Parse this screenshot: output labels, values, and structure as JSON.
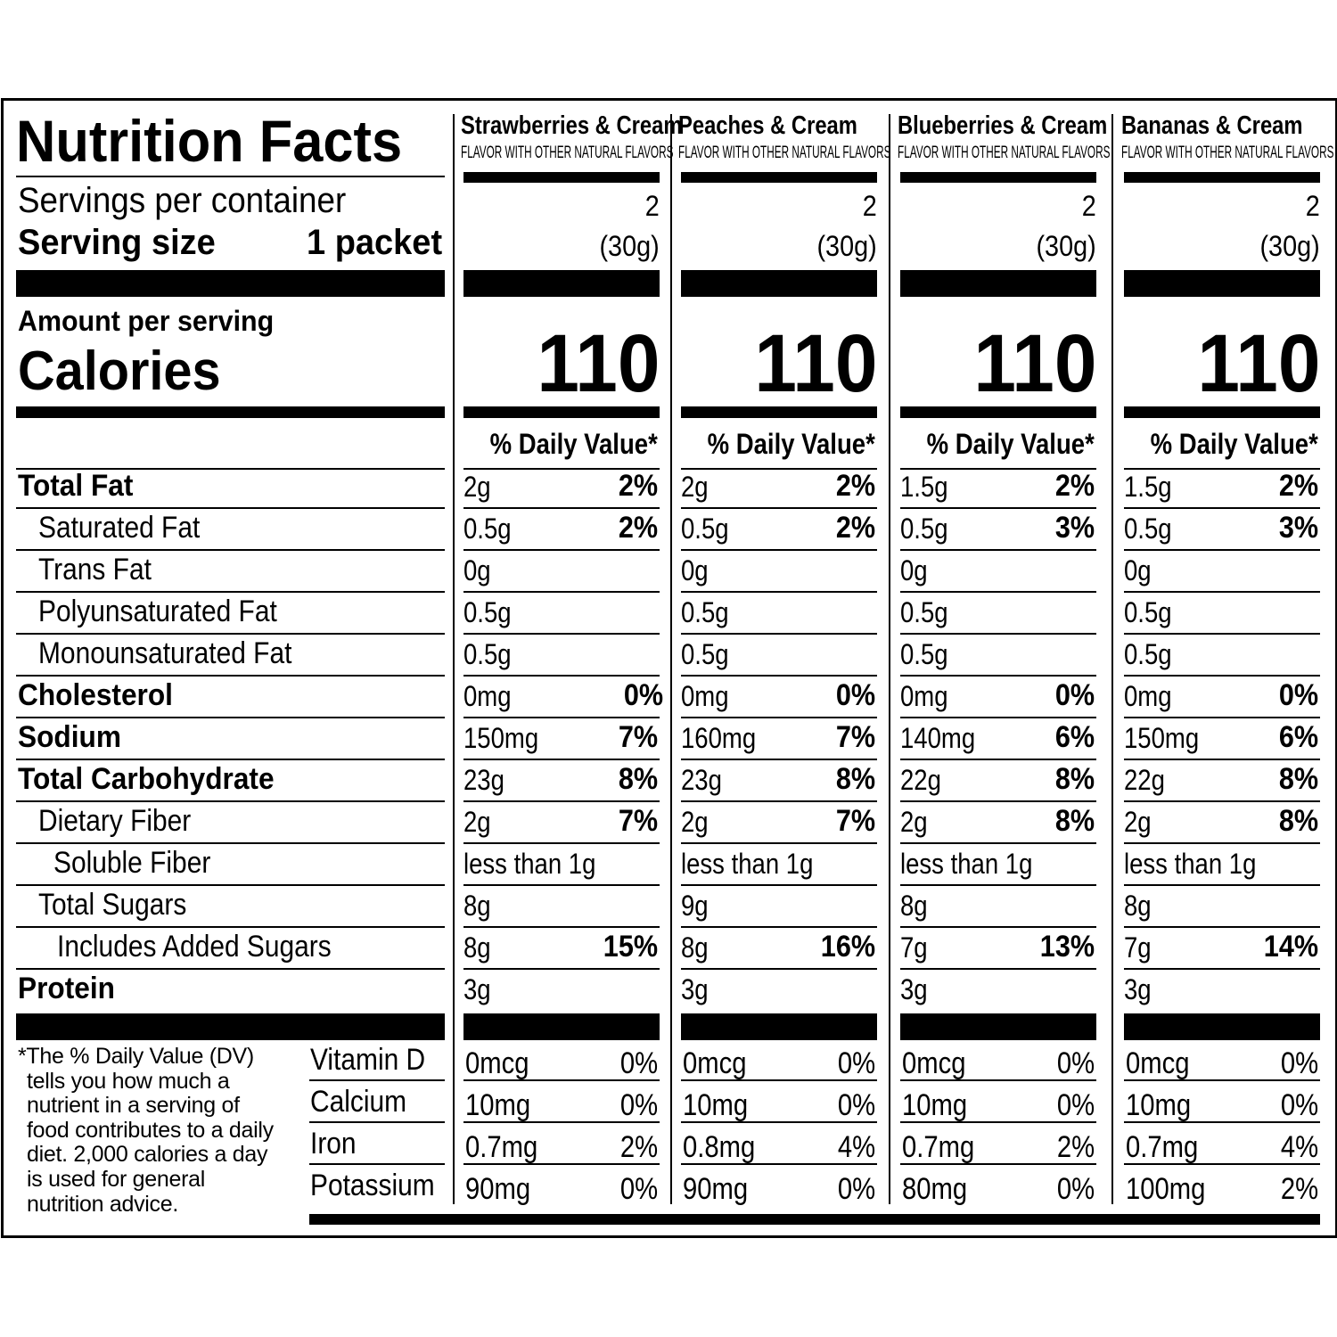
{
  "label": {
    "title": "Nutrition Facts",
    "servings_label": "Servings per container",
    "serving_size_label": "Serving size",
    "serving_size_value": "1 packet",
    "amount_per_serving": "Amount per serving",
    "calories_label": "Calories",
    "footnote": "*The % Daily Value (DV) tells you how much a nutrient in a serving of food contributes to a daily diet. 2,000 calories a day is used for general nutrition advice.",
    "rows": [
      {
        "label": "Total Fat",
        "bold": true,
        "indent": 0
      },
      {
        "label": "Saturated Fat",
        "bold": false,
        "indent": 1
      },
      {
        "label": "Trans Fat",
        "bold": false,
        "indent": 1
      },
      {
        "label": "Polyunsaturated Fat",
        "bold": false,
        "indent": 1
      },
      {
        "label": "Monounsaturated Fat",
        "bold": false,
        "indent": 1
      },
      {
        "label": "Cholesterol",
        "bold": true,
        "indent": 0
      },
      {
        "label": "Sodium",
        "bold": true,
        "indent": 0
      },
      {
        "label": "Total Carbohydrate",
        "bold": true,
        "indent": 0
      },
      {
        "label": "Dietary Fiber",
        "bold": false,
        "indent": 1
      },
      {
        "label": "Soluble Fiber",
        "bold": false,
        "indent": 2
      },
      {
        "label": "Total Sugars",
        "bold": false,
        "indent": 1
      },
      {
        "label": "Includes Added Sugars",
        "bold": false,
        "indent": 2
      },
      {
        "label": "Protein",
        "bold": true,
        "indent": 0
      }
    ],
    "vitamins": [
      "Vitamin D",
      "Calcium",
      "Iron",
      "Potassium"
    ]
  },
  "columns": [
    {
      "name": "Strawberries & Cream",
      "subtitle": "FLAVOR WITH OTHER NATURAL FLAVORS",
      "servings": "2",
      "serving_size": "(30g)",
      "calories": "110",
      "dv_header": "% Daily Value*",
      "amounts": [
        "2g",
        "0.5g",
        "0g",
        "0.5g",
        "0.5g",
        "0mg",
        "150mg",
        "23g",
        "2g",
        "less than 1g",
        "8g",
        "8g",
        "3g"
      ],
      "dvs": [
        "2%",
        "2%",
        "",
        "",
        "",
        "0%",
        "7%",
        "8%",
        "7%",
        "",
        "",
        "15%",
        ""
      ],
      "vit_amounts": [
        "0mcg",
        "10mg",
        "0.7mg",
        "90mg"
      ],
      "vit_dvs": [
        "0%",
        "0%",
        "2%",
        "0%"
      ]
    },
    {
      "name": "Peaches & Cream",
      "subtitle": "FLAVOR WITH OTHER NATURAL FLAVORS",
      "servings": "2",
      "serving_size": "(30g)",
      "calories": "110",
      "dv_header": "% Daily Value*",
      "amounts": [
        "2g",
        "0.5g",
        "0g",
        "0.5g",
        "0.5g",
        "0mg",
        "160mg",
        "23g",
        "2g",
        "less than 1g",
        "9g",
        "8g",
        "3g"
      ],
      "dvs": [
        "2%",
        "2%",
        "",
        "",
        "",
        "0%",
        "7%",
        "8%",
        "7%",
        "",
        "",
        "16%",
        ""
      ],
      "vit_amounts": [
        "0mcg",
        "10mg",
        "0.8mg",
        "90mg"
      ],
      "vit_dvs": [
        "0%",
        "0%",
        "4%",
        "0%"
      ]
    },
    {
      "name": "Blueberries & Cream",
      "subtitle": "FLAVOR WITH OTHER NATURAL FLAVORS",
      "servings": "2",
      "serving_size": "(30g)",
      "calories": "110",
      "dv_header": "% Daily Value*",
      "amounts": [
        "1.5g",
        "0.5g",
        "0g",
        "0.5g",
        "0.5g",
        "0mg",
        "140mg",
        "22g",
        "2g",
        "less than 1g",
        "8g",
        "7g",
        "3g"
      ],
      "dvs": [
        "2%",
        "3%",
        "",
        "",
        "",
        "0%",
        "6%",
        "8%",
        "8%",
        "",
        "",
        "13%",
        ""
      ],
      "vit_amounts": [
        "0mcg",
        "10mg",
        "0.7mg",
        "80mg"
      ],
      "vit_dvs": [
        "0%",
        "0%",
        "2%",
        "0%"
      ]
    },
    {
      "name": "Bananas & Cream",
      "subtitle": "FLAVOR WITH OTHER NATURAL FLAVORS",
      "servings": "2",
      "serving_size": "(30g)",
      "calories": "110",
      "dv_header": "% Daily Value*",
      "amounts": [
        "1.5g",
        "0.5g",
        "0g",
        "0.5g",
        "0.5g",
        "0mg",
        "150mg",
        "22g",
        "2g",
        "less than 1g",
        "8g",
        "7g",
        "3g"
      ],
      "dvs": [
        "2%",
        "3%",
        "",
        "",
        "",
        "0%",
        "6%",
        "8%",
        "8%",
        "",
        "",
        "14%",
        ""
      ],
      "vit_amounts": [
        "0mcg",
        "10mg",
        "0.7mg",
        "100mg"
      ],
      "vit_dvs": [
        "0%",
        "0%",
        "4%",
        "2%"
      ]
    }
  ]
}
